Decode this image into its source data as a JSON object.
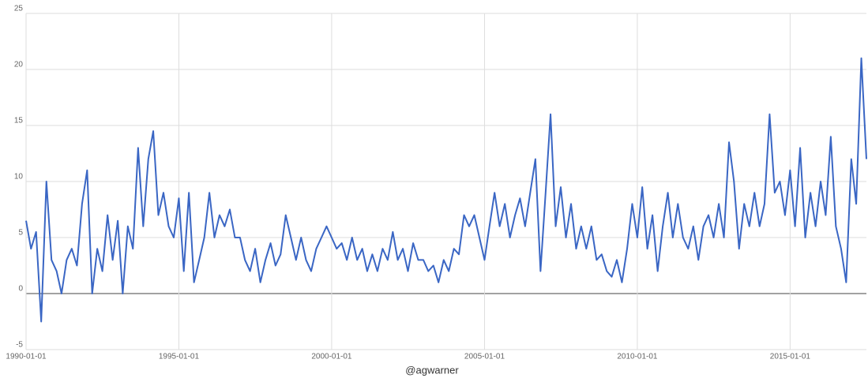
{
  "chart_data": {
    "type": "line",
    "x_label": "@agwarner",
    "xlim": [
      "1990-01-01",
      "2017-07-01"
    ],
    "ylim": [
      -5,
      25
    ],
    "xticks": [
      "1990-01-01",
      "1995-01-01",
      "2000-01-01",
      "2005-01-01",
      "2010-01-01",
      "2015-01-01"
    ],
    "yticks": [
      -5,
      0,
      5,
      10,
      15,
      20,
      25
    ],
    "grid": true,
    "x": [
      "1990-01-01",
      "1990-03-01",
      "1990-05-01",
      "1990-07-01",
      "1990-09-01",
      "1990-11-01",
      "1991-01-01",
      "1991-03-01",
      "1991-05-01",
      "1991-07-01",
      "1991-09-01",
      "1991-11-01",
      "1992-01-01",
      "1992-03-01",
      "1992-05-01",
      "1992-07-01",
      "1992-09-01",
      "1992-11-01",
      "1993-01-01",
      "1993-03-01",
      "1993-05-01",
      "1993-07-01",
      "1993-09-01",
      "1993-11-01",
      "1994-01-01",
      "1994-03-01",
      "1994-05-01",
      "1994-07-01",
      "1994-09-01",
      "1994-11-01",
      "1995-01-01",
      "1995-03-01",
      "1995-05-01",
      "1995-07-01",
      "1995-09-01",
      "1995-11-01",
      "1996-01-01",
      "1996-03-01",
      "1996-05-01",
      "1996-07-01",
      "1996-09-01",
      "1996-11-01",
      "1997-01-01",
      "1997-03-01",
      "1997-05-01",
      "1997-07-01",
      "1997-09-01",
      "1997-11-01",
      "1998-01-01",
      "1998-03-01",
      "1998-05-01",
      "1998-07-01",
      "1998-09-01",
      "1998-11-01",
      "1999-01-01",
      "1999-03-01",
      "1999-05-01",
      "1999-07-01",
      "1999-09-01",
      "1999-11-01",
      "2000-01-01",
      "2000-03-01",
      "2000-05-01",
      "2000-07-01",
      "2000-09-01",
      "2000-11-01",
      "2001-01-01",
      "2001-03-01",
      "2001-05-01",
      "2001-07-01",
      "2001-09-01",
      "2001-11-01",
      "2002-01-01",
      "2002-03-01",
      "2002-05-01",
      "2002-07-01",
      "2002-09-01",
      "2002-11-01",
      "2003-01-01",
      "2003-03-01",
      "2003-05-01",
      "2003-07-01",
      "2003-09-01",
      "2003-11-01",
      "2004-01-01",
      "2004-03-01",
      "2004-05-01",
      "2004-07-01",
      "2004-09-01",
      "2004-11-01",
      "2005-01-01",
      "2005-03-01",
      "2005-05-01",
      "2005-07-01",
      "2005-09-01",
      "2005-11-01",
      "2006-01-01",
      "2006-03-01",
      "2006-05-01",
      "2006-07-01",
      "2006-09-01",
      "2006-11-01",
      "2007-01-01",
      "2007-03-01",
      "2007-05-01",
      "2007-07-01",
      "2007-09-01",
      "2007-11-01",
      "2008-01-01",
      "2008-03-01",
      "2008-05-01",
      "2008-07-01",
      "2008-09-01",
      "2008-11-01",
      "2009-01-01",
      "2009-03-01",
      "2009-05-01",
      "2009-07-01",
      "2009-09-01",
      "2009-11-01",
      "2010-01-01",
      "2010-03-01",
      "2010-05-01",
      "2010-07-01",
      "2010-09-01",
      "2010-11-01",
      "2011-01-01",
      "2011-03-01",
      "2011-05-01",
      "2011-07-01",
      "2011-09-01",
      "2011-11-01",
      "2012-01-01",
      "2012-03-01",
      "2012-05-01",
      "2012-07-01",
      "2012-09-01",
      "2012-11-01",
      "2013-01-01",
      "2013-03-01",
      "2013-05-01",
      "2013-07-01",
      "2013-09-01",
      "2013-11-01",
      "2014-01-01",
      "2014-03-01",
      "2014-05-01",
      "2014-07-01",
      "2014-09-01",
      "2014-11-01",
      "2015-01-01",
      "2015-03-01",
      "2015-05-01",
      "2015-07-01",
      "2015-09-01",
      "2015-11-01",
      "2016-01-01",
      "2016-03-01",
      "2016-05-01",
      "2016-07-01",
      "2016-09-01",
      "2016-11-01",
      "2017-01-01",
      "2017-03-01",
      "2017-05-01",
      "2017-07-01"
    ],
    "series": [
      {
        "color": "#3a66c4",
        "values": [
          6.5,
          4,
          5.5,
          -2.5,
          10,
          3,
          2,
          0,
          3,
          4,
          2.5,
          8,
          11,
          0,
          4,
          2,
          7,
          3,
          6.5,
          0,
          6,
          4,
          13,
          6,
          12,
          14.5,
          7,
          9,
          6,
          5,
          8.5,
          2,
          9,
          1,
          3,
          5,
          9,
          5,
          7,
          6,
          7.5,
          5,
          5,
          3,
          2,
          4,
          1,
          3,
          4.5,
          2.5,
          3.5,
          7,
          5,
          3,
          5,
          3,
          2,
          4,
          5,
          6,
          5,
          4,
          4.5,
          3,
          5,
          3,
          4,
          2,
          3.5,
          2,
          4,
          3,
          5.5,
          3,
          4,
          2,
          4.5,
          3,
          3,
          2,
          2.5,
          1,
          3,
          2,
          4,
          3.5,
          7,
          6,
          7,
          5,
          3,
          6,
          9,
          6,
          8,
          5,
          7,
          8.5,
          6,
          9,
          12,
          2,
          9,
          16,
          6,
          9.5,
          5,
          8,
          4,
          6,
          4,
          6,
          3,
          3.5,
          2,
          1.5,
          3,
          1,
          4,
          8,
          5,
          9.5,
          4,
          7,
          2,
          6,
          9,
          5,
          8,
          5,
          4,
          6,
          3,
          6,
          7,
          5,
          8,
          5,
          13.5,
          10,
          4,
          8,
          6,
          9,
          6,
          8,
          16,
          9,
          10,
          7,
          11,
          6,
          13,
          5,
          9,
          6,
          10,
          7,
          14,
          6,
          4,
          1,
          12,
          8,
          21,
          12
        ]
      }
    ]
  }
}
